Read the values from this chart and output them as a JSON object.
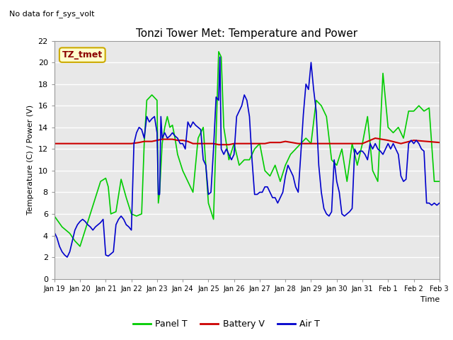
{
  "title": "Tonzi Tower Met: Temperature and Power",
  "no_data_label": "No data for f_sys_volt",
  "legend_box_label": "TZ_tmet",
  "ylabel": "Temperature (C) / Power (V)",
  "xlabel": "Time",
  "ylim": [
    0,
    22
  ],
  "yticks": [
    0,
    2,
    4,
    6,
    8,
    10,
    12,
    14,
    16,
    18,
    20,
    22
  ],
  "bg_color": "#e8e8e8",
  "fig_color": "#ffffff",
  "grid_color": "#ffffff",
  "xtick_labels": [
    "Jan 19",
    "Jan 20",
    "Jan 21",
    "Jan 22",
    "Jan 23",
    "Jan 24",
    "Jan 25",
    "Jan 26",
    "Jan 27",
    "Jan 28",
    "Jan 29",
    "Jan 30",
    "Jan 31",
    "Feb 1",
    "Feb 2",
    "Feb 3"
  ],
  "line_green": {
    "label": "Panel T",
    "color": "#00cc00",
    "lw": 1.2
  },
  "line_red": {
    "label": "Battery V",
    "color": "#cc0000",
    "lw": 1.5
  },
  "line_blue": {
    "label": "Air T",
    "color": "#0000cc",
    "lw": 1.2
  },
  "panel_t_x": [
    0,
    0.3,
    0.6,
    0.8,
    1.0,
    1.2,
    1.4,
    1.6,
    1.8,
    2.0,
    2.1,
    2.2,
    2.4,
    2.6,
    2.8,
    3.0,
    3.2,
    3.4,
    3.5,
    3.6,
    3.8,
    4.0,
    4.05,
    4.1,
    4.2,
    4.3,
    4.4,
    4.5,
    4.6,
    4.7,
    4.8,
    5.0,
    5.2,
    5.4,
    5.6,
    5.8,
    6.0,
    6.2,
    6.4,
    6.5,
    6.6,
    6.8,
    7.0,
    7.2,
    7.4,
    7.6,
    7.8,
    8.0,
    8.2,
    8.4,
    8.6,
    8.8,
    9.0,
    9.2,
    9.4,
    9.6,
    9.8,
    10.0,
    10.2,
    10.4,
    10.6,
    10.8,
    11.0,
    11.2,
    11.4,
    11.6,
    11.8,
    12.0,
    12.2,
    12.4,
    12.6,
    12.8,
    13.0,
    13.2,
    13.4,
    13.6,
    13.8,
    14.0,
    14.2,
    14.4,
    14.6,
    14.8,
    15.0
  ],
  "panel_t_y": [
    5.8,
    4.8,
    4.2,
    3.5,
    3.0,
    4.5,
    6.0,
    7.5,
    9.0,
    9.3,
    8.5,
    6.0,
    6.2,
    9.2,
    7.5,
    6.0,
    5.8,
    6.0,
    12.5,
    16.5,
    17.0,
    16.5,
    7.0,
    8.0,
    12.5,
    14.0,
    15.0,
    14.0,
    14.2,
    13.0,
    11.5,
    10.0,
    9.0,
    8.0,
    13.0,
    14.0,
    7.0,
    5.5,
    21.0,
    20.5,
    14.0,
    11.0,
    12.5,
    10.5,
    11.0,
    11.0,
    12.0,
    12.5,
    10.0,
    9.5,
    10.5,
    9.0,
    10.5,
    11.5,
    12.0,
    12.5,
    13.0,
    12.5,
    16.5,
    16.0,
    15.0,
    11.0,
    10.5,
    12.0,
    9.0,
    12.5,
    10.5,
    12.5,
    15.0,
    10.0,
    9.0,
    19.0,
    14.0,
    13.5,
    14.0,
    13.0,
    15.5,
    15.5,
    16.0,
    15.5,
    15.8,
    9.0,
    9.0
  ],
  "battery_v_x": [
    0,
    0.5,
    1.0,
    1.5,
    2.0,
    2.5,
    3.0,
    3.3,
    3.5,
    3.8,
    4.0,
    4.2,
    4.4,
    4.6,
    4.8,
    5.0,
    5.2,
    5.4,
    5.6,
    5.8,
    6.0,
    6.2,
    6.4,
    6.6,
    6.8,
    7.0,
    7.2,
    7.4,
    7.6,
    7.8,
    8.0,
    8.2,
    8.4,
    8.6,
    8.8,
    9.0,
    9.5,
    10.0,
    10.5,
    11.0,
    11.5,
    12.0,
    12.5,
    13.0,
    13.5,
    14.0,
    14.5,
    15.0
  ],
  "battery_v_y": [
    12.5,
    12.5,
    12.5,
    12.5,
    12.5,
    12.5,
    12.5,
    12.6,
    12.7,
    12.7,
    12.8,
    12.9,
    12.9,
    12.9,
    12.8,
    12.8,
    12.7,
    12.5,
    12.5,
    12.5,
    12.5,
    12.5,
    12.4,
    12.4,
    12.4,
    12.5,
    12.5,
    12.5,
    12.5,
    12.5,
    12.5,
    12.5,
    12.6,
    12.6,
    12.6,
    12.7,
    12.5,
    12.5,
    12.5,
    12.5,
    12.5,
    12.5,
    13.0,
    12.8,
    12.5,
    12.8,
    12.7,
    12.6
  ],
  "air_t_x": [
    0,
    0.1,
    0.2,
    0.3,
    0.4,
    0.5,
    0.6,
    0.7,
    0.8,
    0.9,
    1.0,
    1.1,
    1.2,
    1.3,
    1.4,
    1.5,
    1.6,
    1.7,
    1.8,
    1.9,
    2.0,
    2.1,
    2.2,
    2.3,
    2.4,
    2.5,
    2.6,
    2.7,
    2.8,
    2.9,
    3.0,
    3.1,
    3.2,
    3.3,
    3.4,
    3.5,
    3.6,
    3.7,
    3.8,
    3.9,
    4.0,
    4.05,
    4.1,
    4.15,
    4.2,
    4.3,
    4.4,
    4.5,
    4.6,
    4.7,
    4.8,
    4.9,
    5.0,
    5.1,
    5.2,
    5.3,
    5.4,
    5.5,
    5.6,
    5.7,
    5.8,
    5.9,
    6.0,
    6.1,
    6.2,
    6.3,
    6.4,
    6.45,
    6.5,
    6.6,
    6.7,
    6.8,
    6.9,
    7.0,
    7.1,
    7.2,
    7.3,
    7.4,
    7.5,
    7.6,
    7.7,
    7.8,
    7.9,
    8.0,
    8.1,
    8.2,
    8.3,
    8.4,
    8.5,
    8.6,
    8.7,
    8.8,
    8.9,
    9.0,
    9.1,
    9.2,
    9.3,
    9.4,
    9.5,
    9.6,
    9.7,
    9.8,
    9.9,
    10.0,
    10.1,
    10.2,
    10.3,
    10.4,
    10.5,
    10.6,
    10.7,
    10.8,
    10.9,
    11.0,
    11.1,
    11.2,
    11.3,
    11.4,
    11.5,
    11.6,
    11.7,
    11.8,
    11.9,
    12.0,
    12.1,
    12.2,
    12.3,
    12.4,
    12.5,
    12.6,
    12.7,
    12.8,
    12.9,
    13.0,
    13.1,
    13.2,
    13.3,
    13.4,
    13.5,
    13.6,
    13.7,
    13.8,
    13.9,
    14.0,
    14.1,
    14.2,
    14.3,
    14.4,
    14.5,
    14.6,
    14.7,
    14.8,
    14.9,
    15.0
  ],
  "air_t_y": [
    4.3,
    3.8,
    3.0,
    2.5,
    2.2,
    2.0,
    2.5,
    3.5,
    4.5,
    5.0,
    5.3,
    5.5,
    5.3,
    5.0,
    4.8,
    4.5,
    4.8,
    5.0,
    5.2,
    5.5,
    2.2,
    2.1,
    2.3,
    2.5,
    5.0,
    5.5,
    5.8,
    5.5,
    5.0,
    4.8,
    4.5,
    12.5,
    13.5,
    14.0,
    13.8,
    13.0,
    15.0,
    14.5,
    14.8,
    15.0,
    13.5,
    7.8,
    7.8,
    15.0,
    13.0,
    13.5,
    13.0,
    13.2,
    13.5,
    13.2,
    13.0,
    12.5,
    12.5,
    12.0,
    14.5,
    14.0,
    14.5,
    14.2,
    14.0,
    13.8,
    11.0,
    10.5,
    7.8,
    8.0,
    12.0,
    16.8,
    16.5,
    20.5,
    12.0,
    11.5,
    12.0,
    11.5,
    11.0,
    11.5,
    15.0,
    15.5,
    16.0,
    17.0,
    16.5,
    15.0,
    11.0,
    7.8,
    7.8,
    8.0,
    8.0,
    8.5,
    8.5,
    8.0,
    7.5,
    7.5,
    7.0,
    7.5,
    8.0,
    9.5,
    10.5,
    10.0,
    9.5,
    8.5,
    8.0,
    11.5,
    15.2,
    18.0,
    17.5,
    20.0,
    17.5,
    15.5,
    10.5,
    8.0,
    6.5,
    6.0,
    5.8,
    6.2,
    11.0,
    9.0,
    8.0,
    6.0,
    5.8,
    6.0,
    6.2,
    6.5,
    12.0,
    11.5,
    11.8,
    11.8,
    11.5,
    11.0,
    12.5,
    12.0,
    12.5,
    12.0,
    11.8,
    11.5,
    12.0,
    12.5,
    12.0,
    12.5,
    12.0,
    11.5,
    9.5,
    9.0,
    9.2,
    12.5,
    12.8,
    12.5,
    12.8,
    12.5,
    12.0,
    11.8,
    7.0,
    7.0,
    6.8,
    7.0,
    6.8,
    7.0
  ]
}
